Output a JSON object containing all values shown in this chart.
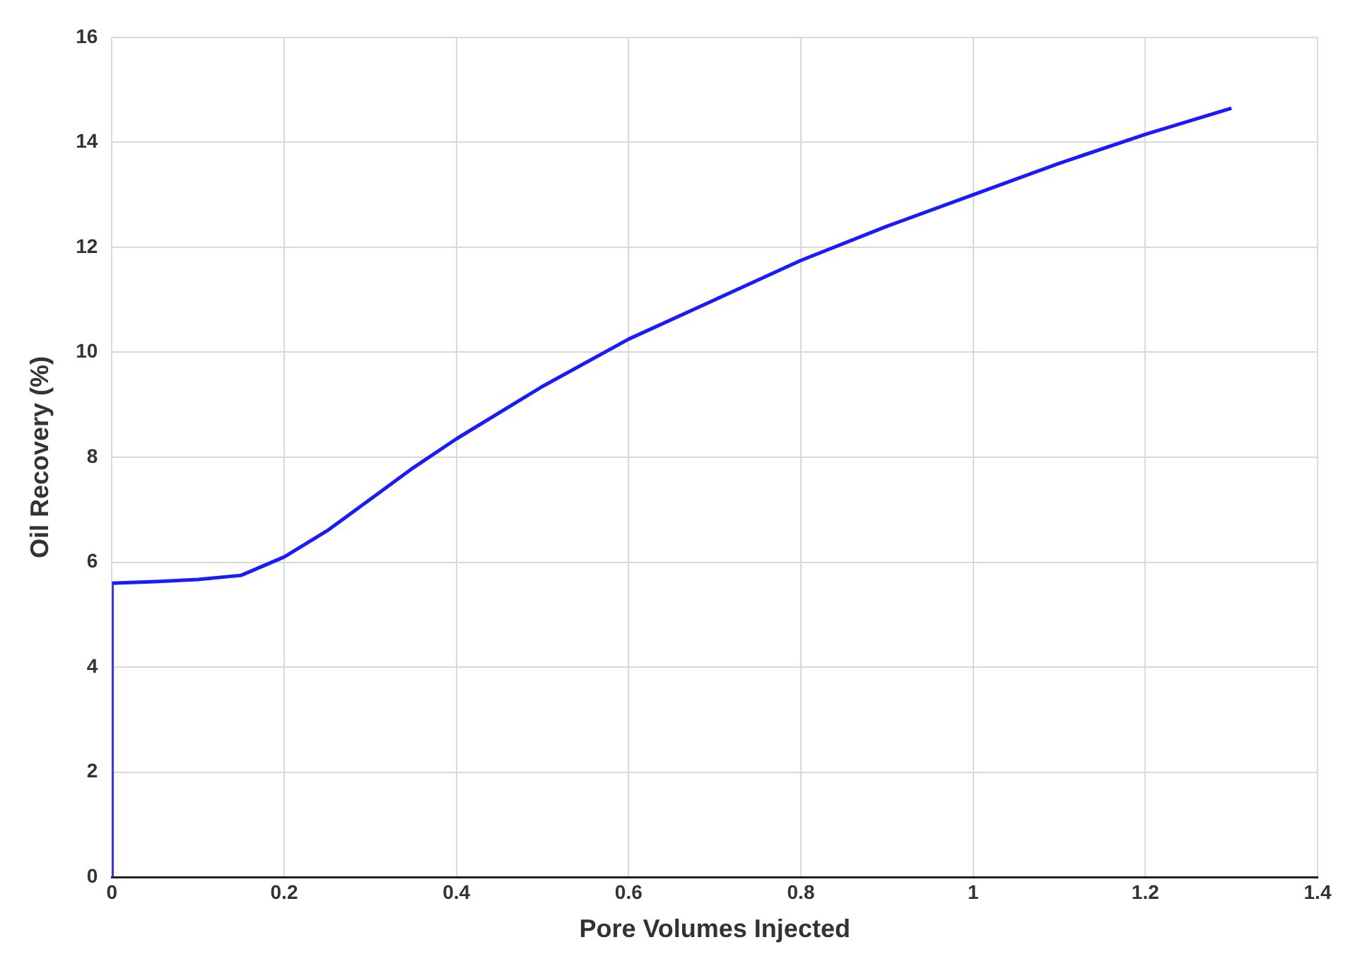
{
  "chart_data": {
    "type": "line",
    "xlabel": "Pore Volumes Injected",
    "ylabel": "Oil Recovery (%)",
    "x": [
      0,
      0,
      0.05,
      0.1,
      0.15,
      0.2,
      0.25,
      0.3,
      0.35,
      0.4,
      0.5,
      0.6,
      0.7,
      0.8,
      0.9,
      1.0,
      1.1,
      1.2,
      1.3
    ],
    "series": [
      {
        "color": "#1a1aff",
        "values": [
          0,
          5.6,
          5.63,
          5.67,
          5.75,
          6.1,
          6.6,
          7.2,
          7.8,
          8.35,
          9.35,
          10.25,
          11.0,
          11.75,
          12.4,
          13.0,
          13.6,
          14.15,
          14.65
        ]
      }
    ],
    "xlim": [
      0,
      1.4
    ],
    "xticks": [
      0,
      0.2,
      0.4,
      0.6,
      0.8,
      1,
      1.2,
      1.4
    ],
    "ylim": [
      0,
      16
    ],
    "yticks": [
      0,
      2,
      4,
      6,
      8,
      10,
      12,
      14,
      16
    ],
    "grid": true,
    "legend": false,
    "marker": "none",
    "line_style": "solid"
  }
}
